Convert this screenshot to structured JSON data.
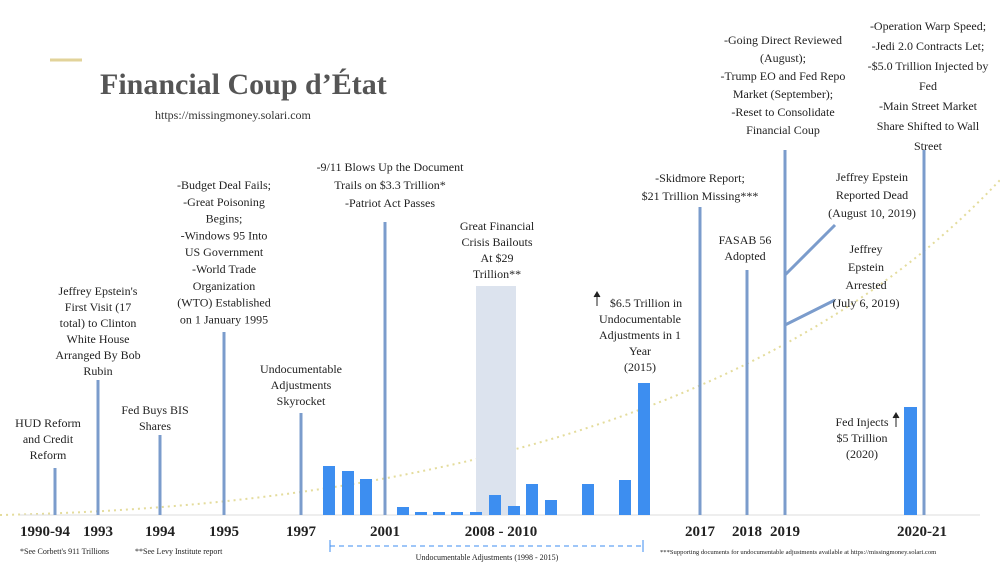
{
  "header": {
    "title": "Financial Coup d’État",
    "url": "https://missingmoney.solari.com"
  },
  "events": [
    {
      "lines": [
        "HUD Reform",
        "and Credit",
        "Reform"
      ]
    },
    {
      "lines": [
        "Jeffrey Epstein's",
        "First Visit (17",
        "total) to Clinton",
        "White House",
        "Arranged By Bob",
        "Rubin"
      ]
    },
    {
      "lines": [
        "Fed Buys BIS",
        "Shares"
      ]
    },
    {
      "lines": [
        "-Budget Deal Fails;",
        "-Great Poisoning",
        "Begins;",
        "-Windows 95 Into",
        "US Government",
        "-World Trade",
        "Organization",
        "(WTO) Established",
        "on 1 January 1995"
      ]
    },
    {
      "lines": [
        "Undocumentable",
        "Adjustments",
        "Skyrocket"
      ]
    },
    {
      "lines": [
        "-9/11 Blows Up the Document",
        "Trails on $3.3 Trillion*",
        "-Patriot Act Passes"
      ]
    },
    {
      "lines": [
        "Great Financial",
        "Crisis Bailouts",
        "At $29",
        "Trillion**"
      ]
    },
    {
      "lines": [
        "$6.5 Trillion in",
        "Undocumentable",
        "Adjustments in 1",
        "Year",
        "(2015)"
      ]
    },
    {
      "lines": [
        "-Skidmore Report;",
        "$21 Trillion Missing***"
      ]
    },
    {
      "lines": [
        "FASAB 56",
        "Adopted"
      ]
    },
    {
      "lines": [
        "-Going Direct Reviewed",
        "(August);",
        "-Trump EO and Fed Repo",
        "Market (September);",
        "-Reset to Consolidate",
        "Financial Coup"
      ]
    },
    {
      "lines": [
        "Jeffrey Epstein",
        "Reported Dead",
        "(August 10, 2019)"
      ]
    },
    {
      "lines": [
        "Jeffrey",
        "Epstein",
        "Arrested",
        "(July 6, 2019)"
      ]
    },
    {
      "lines": [
        "-Operation Warp Speed;",
        "-Jedi 2.0 Contracts Let;",
        "-$5.0 Trillion Injected by",
        "Fed",
        "-Main Street Market",
        "Share Shifted to Wall",
        "Street"
      ]
    },
    {
      "lines": [
        "Fed Injects",
        "$5 Trillion",
        "(2020)"
      ]
    }
  ],
  "years": [
    "1990-94",
    "1993",
    "1994",
    "1995",
    "1997",
    "2001",
    "2008 - 2010",
    "2017",
    "2018",
    "2019",
    "2020-21"
  ],
  "bracket_label": "Undocumentable Adjustments (1998 - 2015)",
  "footnotes": [
    "*See Corbett's 911 Trillions",
    "**See Levy Institute report",
    "***Supporting documents for undocumentable adjustments available at https://missingmoney.solari.com"
  ]
}
